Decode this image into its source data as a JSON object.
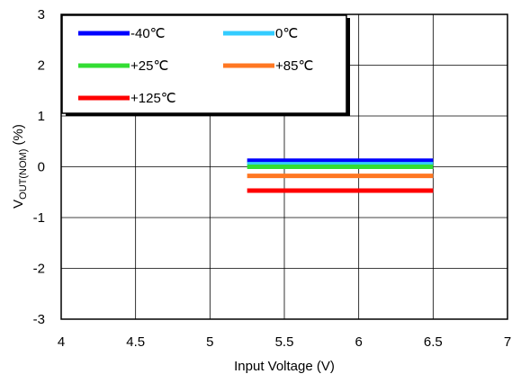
{
  "chart_data": {
    "type": "line",
    "title": "",
    "xlabel": "Input Voltage (V)",
    "ylabel_main": "V",
    "ylabel_sub": "OUT(NOM)",
    "ylabel_unit": " (%)",
    "xlim": [
      4,
      7
    ],
    "ylim": [
      -3,
      3
    ],
    "xticks": [
      4,
      4.5,
      5,
      5.5,
      6,
      6.5,
      7
    ],
    "xtick_labels": [
      "4",
      "4.5",
      "5",
      "5.5",
      "6",
      "6.5",
      "7"
    ],
    "yticks": [
      -3,
      -2,
      -1,
      0,
      1,
      2,
      3
    ],
    "ytick_labels": [
      "-3",
      "-2",
      "-1",
      "0",
      "1",
      "2",
      "3"
    ],
    "grid": true,
    "legend_position": "top-left",
    "series": [
      {
        "name": "-40℃",
        "color": "#0000ff",
        "x": [
          5.25,
          6.5
        ],
        "y": [
          0.12,
          0.12
        ]
      },
      {
        "name": "0℃",
        "color": "#33ccff",
        "x": [
          5.25,
          6.5
        ],
        "y": [
          0.05,
          0.05
        ]
      },
      {
        "name": "+25℃",
        "color": "#33dd33",
        "x": [
          5.25,
          6.5
        ],
        "y": [
          0.0,
          0.0
        ]
      },
      {
        "name": "+85℃",
        "color": "#ff7722",
        "x": [
          5.25,
          6.5
        ],
        "y": [
          -0.18,
          -0.18
        ]
      },
      {
        "name": "+125℃",
        "color": "#ff0000",
        "x": [
          5.25,
          6.5
        ],
        "y": [
          -0.47,
          -0.47
        ]
      }
    ]
  }
}
